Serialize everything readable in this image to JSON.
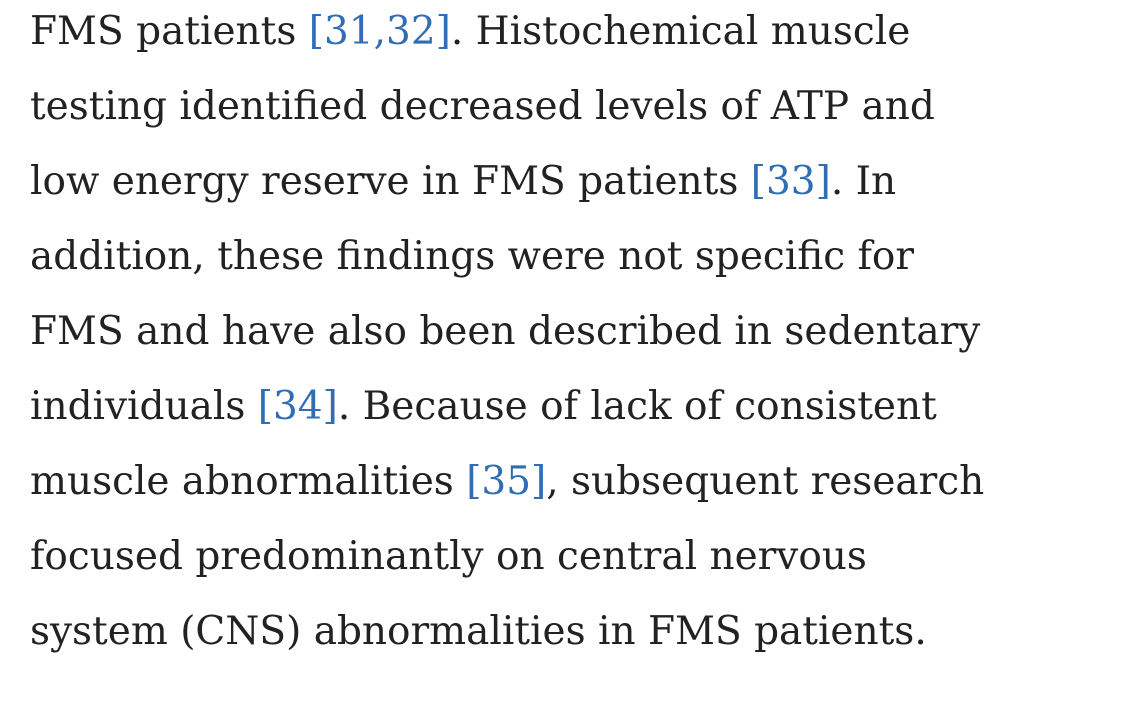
{
  "paragraph": {
    "lines": [
      [
        "FMS patients ",
        {
          "citation": "[31,32]"
        },
        ". Histochemical muscle"
      ],
      [
        "testing identified decreased levels of ATP and"
      ],
      [
        "low energy reserve in FMS patients ",
        {
          "citation": "[33]"
        },
        ". In"
      ],
      [
        "addition, these findings were not specific for"
      ],
      [
        "FMS and have also been described in sedentary"
      ],
      [
        "individuals ",
        {
          "citation": "[34]"
        },
        ". Because of lack of consistent"
      ],
      [
        "muscle abnormalities ",
        {
          "citation": "[35]"
        },
        ", subsequent research"
      ],
      [
        "focused predominantly on central nervous"
      ],
      [
        "system (CNS) abnormalities in FMS patients."
      ]
    ]
  }
}
